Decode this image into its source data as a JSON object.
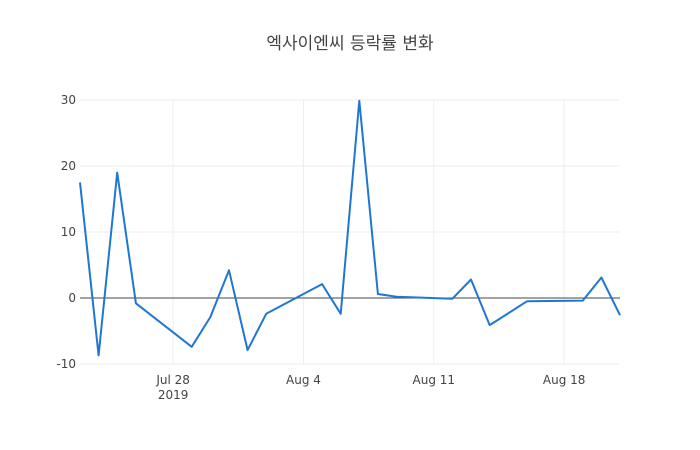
{
  "chart_data": {
    "type": "line",
    "title": "엑사이엔씨 등락률 변화",
    "xlabel": "",
    "ylabel": "",
    "x": [
      "2019-07-23",
      "2019-07-24",
      "2019-07-25",
      "2019-07-26",
      "2019-07-29",
      "2019-07-30",
      "2019-07-31",
      "2019-08-01",
      "2019-08-02",
      "2019-08-05",
      "2019-08-06",
      "2019-08-07",
      "2019-08-08",
      "2019-08-09",
      "2019-08-12",
      "2019-08-13",
      "2019-08-14",
      "2019-08-16",
      "2019-08-19",
      "2019-08-20",
      "2019-08-21"
    ],
    "values": [
      17.5,
      -8.7,
      19.0,
      -0.8,
      -7.4,
      -2.9,
      4.2,
      -7.9,
      -2.4,
      2.1,
      -2.4,
      29.9,
      0.6,
      0.2,
      -0.1,
      2.8,
      -4.1,
      -0.5,
      -0.4,
      3.1,
      -2.6
    ],
    "xlim": [
      "2019-07-23",
      "2019-08-21"
    ],
    "ylim": [
      -10,
      30
    ],
    "y_ticks": [
      -10,
      0,
      10,
      20,
      30
    ],
    "x_ticks": [
      {
        "date": "2019-07-28",
        "label": "Jul 28",
        "sublabel": "2019"
      },
      {
        "date": "2019-08-04",
        "label": "Aug 4",
        "sublabel": ""
      },
      {
        "date": "2019-08-11",
        "label": "Aug 11",
        "sublabel": ""
      },
      {
        "date": "2019-08-18",
        "label": "Aug 18",
        "sublabel": ""
      }
    ],
    "grid": true,
    "line_color": "#1f77d4"
  }
}
